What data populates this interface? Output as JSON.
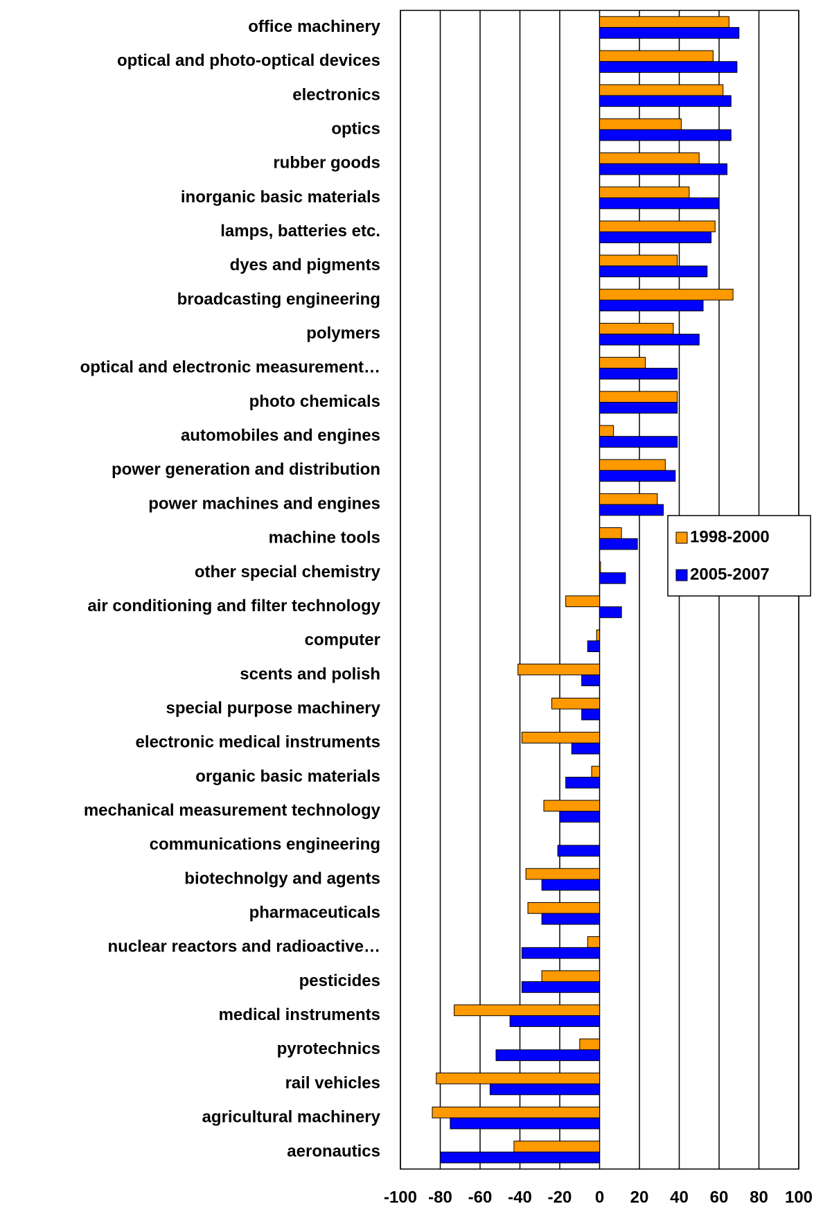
{
  "chart_data": {
    "type": "hbar",
    "categories": [
      "office machinery",
      "optical and photo-optical devices",
      "electronics",
      "optics",
      "rubber goods",
      "inorganic basic materials",
      "lamps, batteries etc.",
      "dyes and pigments",
      "broadcasting engineering",
      "polymers",
      "optical and electronic measurement…",
      "photo chemicals",
      "automobiles and engines",
      "power generation and distribution",
      "power machines and engines",
      "machine tools",
      "other special chemistry",
      "air conditioning and filter technology",
      "computer",
      "scents and polish",
      "special purpose machinery",
      "electronic medical instruments",
      "organic basic materials",
      "mechanical measurement technology",
      "communications engineering",
      "biotechnolgy and agents",
      "pharmaceuticals",
      "nuclear reactors and radioactive…",
      "pesticides",
      "medical instruments",
      "pyrotechnics",
      "rail vehicles",
      "agricultural machinery",
      "aeronautics"
    ],
    "series": [
      {
        "name": "1998-2000",
        "color": "#ff9900",
        "values": [
          65,
          57,
          62,
          41,
          50,
          45,
          58,
          39,
          67,
          37,
          23,
          39,
          7,
          33,
          29,
          11,
          0.5,
          -17,
          -1.5,
          -41,
          -24,
          -39,
          -4,
          -28,
          0,
          -37,
          -36,
          -6,
          -29,
          -73,
          -10,
          -82,
          -84,
          -43
        ]
      },
      {
        "name": "2005-2007",
        "color": "#0000ff",
        "values": [
          70,
          69,
          66,
          66,
          64,
          60,
          56,
          54,
          52,
          50,
          39,
          39,
          39,
          38,
          32,
          19,
          13,
          11,
          -6,
          -9,
          -9,
          -14,
          -17,
          -20,
          -21,
          -29,
          -29,
          -39,
          -39,
          -45,
          -52,
          -55,
          -75,
          -80
        ]
      }
    ],
    "xlim": [
      -100,
      100
    ],
    "xticks": [
      -100,
      -80,
      -60,
      -40,
      -20,
      0,
      20,
      40,
      60,
      80,
      100
    ],
    "grid": true,
    "legend": "right"
  }
}
